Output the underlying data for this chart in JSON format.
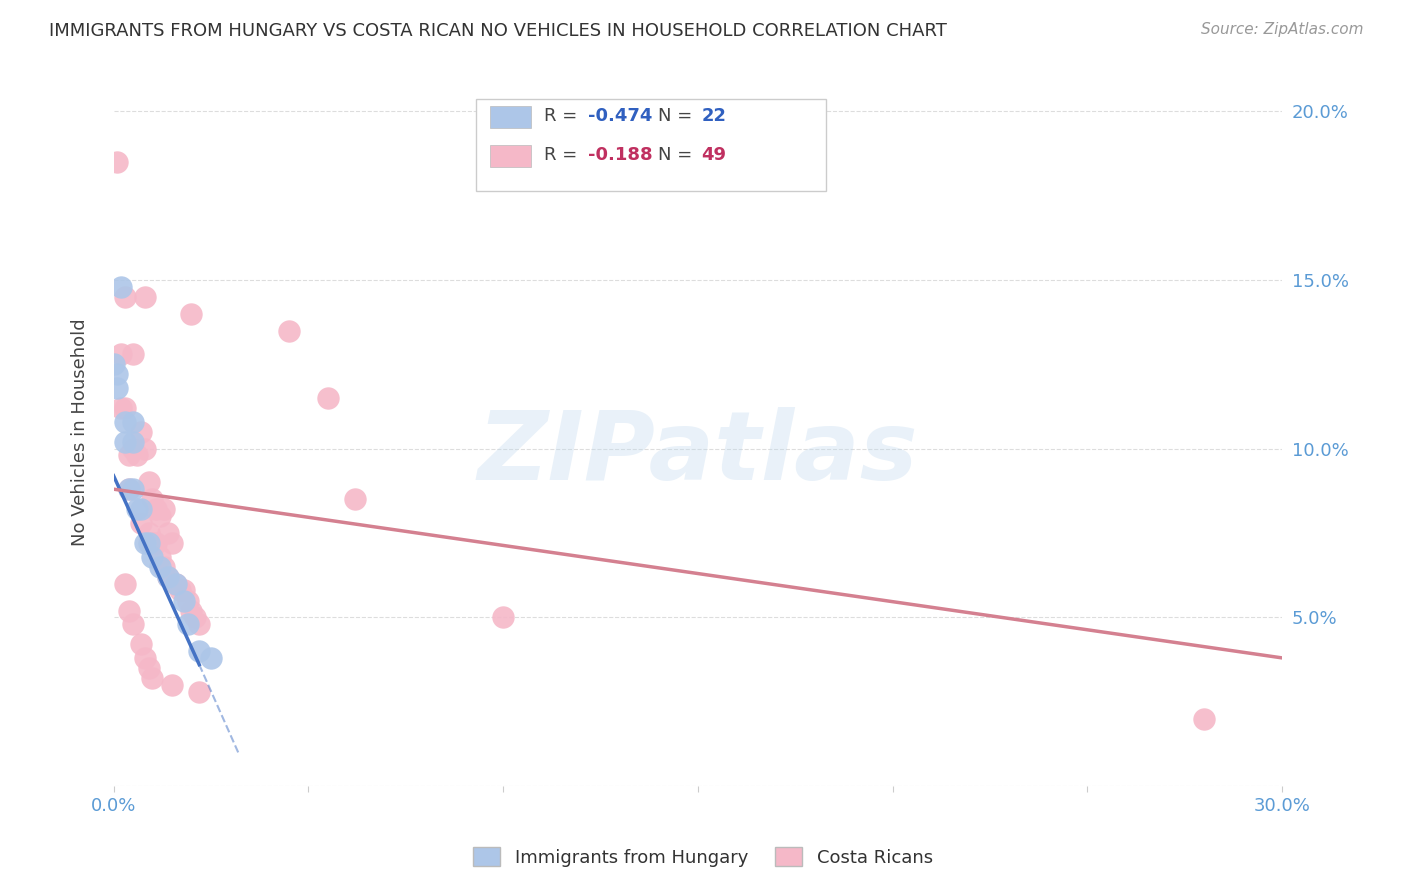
{
  "title": "IMMIGRANTS FROM HUNGARY VS COSTA RICAN NO VEHICLES IN HOUSEHOLD CORRELATION CHART",
  "source": "Source: ZipAtlas.com",
  "ylabel": "No Vehicles in Household",
  "legend_entries": [
    {
      "color": "#adc6e8",
      "label_r": "R = ",
      "r_val": "-0.474",
      "label_n": "   N = ",
      "n_val": "22"
    },
    {
      "color": "#f5b8c8",
      "label_r": "R = ",
      "r_val": "-0.188",
      "label_n": "   N = ",
      "n_val": "49"
    }
  ],
  "legend_labels_bottom": [
    "Immigrants from Hungary",
    "Costa Ricans"
  ],
  "watermark": "ZIPatlas",
  "blue_points": [
    [
      0.002,
      0.148
    ],
    [
      0.001,
      0.122
    ],
    [
      0.0,
      0.125
    ],
    [
      0.001,
      0.118
    ],
    [
      0.003,
      0.108
    ],
    [
      0.003,
      0.102
    ],
    [
      0.005,
      0.108
    ],
    [
      0.005,
      0.102
    ],
    [
      0.004,
      0.088
    ],
    [
      0.005,
      0.088
    ],
    [
      0.006,
      0.082
    ],
    [
      0.007,
      0.082
    ],
    [
      0.008,
      0.072
    ],
    [
      0.009,
      0.072
    ],
    [
      0.01,
      0.068
    ],
    [
      0.012,
      0.065
    ],
    [
      0.014,
      0.062
    ],
    [
      0.016,
      0.06
    ],
    [
      0.018,
      0.055
    ],
    [
      0.019,
      0.048
    ],
    [
      0.022,
      0.04
    ],
    [
      0.025,
      0.038
    ]
  ],
  "pink_points": [
    [
      0.001,
      0.185
    ],
    [
      0.003,
      0.145
    ],
    [
      0.008,
      0.145
    ],
    [
      0.002,
      0.128
    ],
    [
      0.005,
      0.128
    ],
    [
      0.003,
      0.112
    ],
    [
      0.002,
      0.112
    ],
    [
      0.007,
      0.105
    ],
    [
      0.004,
      0.098
    ],
    [
      0.005,
      0.1
    ],
    [
      0.006,
      0.098
    ],
    [
      0.008,
      0.1
    ],
    [
      0.009,
      0.09
    ],
    [
      0.004,
      0.088
    ],
    [
      0.01,
      0.085
    ],
    [
      0.011,
      0.082
    ],
    [
      0.012,
      0.08
    ],
    [
      0.013,
      0.082
    ],
    [
      0.014,
      0.075
    ],
    [
      0.015,
      0.072
    ],
    [
      0.007,
      0.078
    ],
    [
      0.009,
      0.075
    ],
    [
      0.01,
      0.072
    ],
    [
      0.011,
      0.072
    ],
    [
      0.012,
      0.068
    ],
    [
      0.013,
      0.065
    ],
    [
      0.014,
      0.062
    ],
    [
      0.016,
      0.06
    ],
    [
      0.017,
      0.058
    ],
    [
      0.018,
      0.058
    ],
    [
      0.019,
      0.055
    ],
    [
      0.02,
      0.052
    ],
    [
      0.021,
      0.05
    ],
    [
      0.022,
      0.048
    ],
    [
      0.003,
      0.06
    ],
    [
      0.004,
      0.052
    ],
    [
      0.005,
      0.048
    ],
    [
      0.007,
      0.042
    ],
    [
      0.008,
      0.038
    ],
    [
      0.009,
      0.035
    ],
    [
      0.01,
      0.032
    ],
    [
      0.015,
      0.03
    ],
    [
      0.022,
      0.028
    ],
    [
      0.02,
      0.14
    ],
    [
      0.045,
      0.135
    ],
    [
      0.055,
      0.115
    ],
    [
      0.062,
      0.085
    ],
    [
      0.1,
      0.05
    ],
    [
      0.28,
      0.02
    ]
  ],
  "blue_line": {
    "x0": 0.0,
    "y0": 0.092,
    "x1": 0.022,
    "y1": 0.036
  },
  "blue_line_dashed": {
    "x0": 0.022,
    "y0": 0.036,
    "x1": 0.032,
    "y1": 0.01
  },
  "pink_line": {
    "x0": 0.0,
    "y0": 0.088,
    "x1": 0.3,
    "y1": 0.038
  },
  "xlim": [
    0.0,
    0.3
  ],
  "ylim": [
    0.0,
    0.21
  ],
  "xtick_positions": [
    0.0,
    0.05,
    0.1,
    0.15,
    0.2,
    0.25,
    0.3
  ],
  "ytick_positions": [
    0.0,
    0.05,
    0.1,
    0.15,
    0.2
  ],
  "background_color": "#ffffff",
  "grid_color": "#dddddd",
  "title_color": "#333333",
  "blue_scatter_color": "#adc6e8",
  "pink_scatter_color": "#f5b8c8",
  "blue_line_color": "#4472c4",
  "pink_line_color": "#d48090",
  "right_axis_color": "#5b9bd5",
  "left_axis_color": "#5b9bd5"
}
